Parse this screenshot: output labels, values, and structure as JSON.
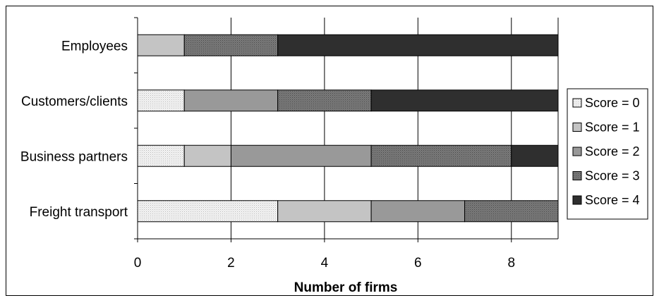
{
  "chart_data": {
    "type": "bar",
    "orientation": "horizontal",
    "stacked": true,
    "title": "",
    "xlabel": "Number of firms",
    "ylabel": "",
    "xlim": [
      0,
      9
    ],
    "x_ticks": [
      0,
      2,
      4,
      6,
      8
    ],
    "grid": "vertical",
    "legend_position": "right",
    "categories": [
      "Employees",
      "Customers/clients",
      "Business partners",
      "Freight transport"
    ],
    "series": [
      {
        "name": "Score = 0",
        "values": [
          0,
          1,
          1,
          3
        ],
        "color": "#ececec",
        "pattern": "dots-light"
      },
      {
        "name": "Score = 1",
        "values": [
          1,
          0,
          1,
          2
        ],
        "color": "#c4c4c4",
        "pattern": "solid"
      },
      {
        "name": "Score = 2",
        "values": [
          0,
          2,
          3,
          2
        ],
        "color": "#999999",
        "pattern": "solid"
      },
      {
        "name": "Score = 3",
        "values": [
          2,
          2,
          3,
          2
        ],
        "color": "#6f6f6f",
        "pattern": "dots-dark"
      },
      {
        "name": "Score = 4",
        "values": [
          6,
          4,
          1,
          0
        ],
        "color": "#2f2f2f",
        "pattern": "solid"
      }
    ]
  }
}
